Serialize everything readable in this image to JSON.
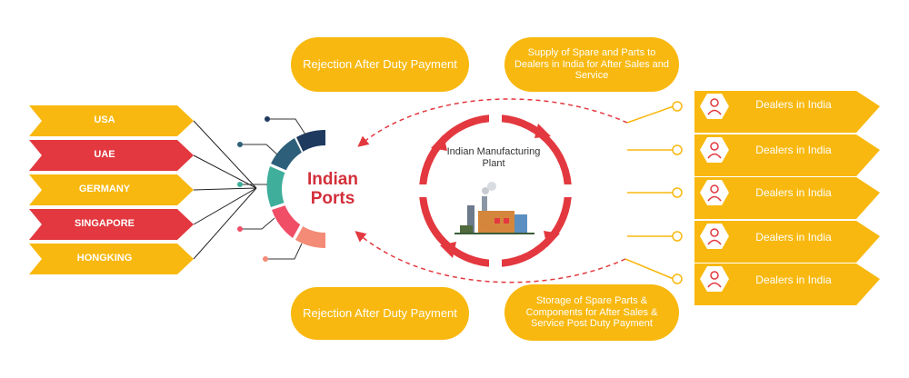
{
  "countries": [
    "USA",
    "UAE",
    "GERMANY",
    "SINGAPORE",
    "HONGKING"
  ],
  "center_label": "Indian Ports",
  "plant_label": "Indian Manufacturing Plant",
  "top_left_pill": "Rejection After Duty Payment",
  "bottom_left_pill": "Rejection After Duty Payment",
  "top_right_pill": "Supply of Spare and Parts to Dealers in India for After Sales and Service",
  "bottom_right_pill": "Storage of Spare Parts & Components for After Sales & Service Post Duty Payment",
  "dealers": [
    "Dealers in India",
    "Dealers in India",
    "Dealers in India",
    "Dealers in India",
    "Dealers in India"
  ],
  "colors": {
    "yellow": "#f8b80f",
    "red": "#e3383f",
    "navy": "#1f3a5f",
    "teal": "#3fae9b",
    "pink": "#f04e67",
    "salmon": "#f48b77"
  }
}
